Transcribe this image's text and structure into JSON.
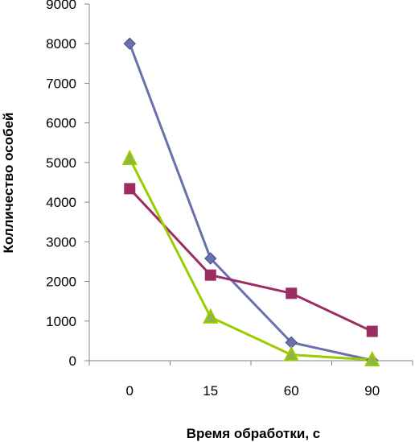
{
  "chart_data": {
    "type": "line",
    "title": "",
    "xlabel": "Время обработки, с",
    "ylabel": "Колличество особей",
    "categories": [
      "0",
      "15",
      "60",
      "90"
    ],
    "ylim": [
      0,
      9000
    ],
    "yticks": [
      0,
      1000,
      2000,
      3000,
      4000,
      5000,
      6000,
      7000,
      8000,
      9000
    ],
    "grid": false,
    "legend": "none",
    "series": [
      {
        "values": [
          8000,
          2580,
          460,
          10
        ],
        "color": "#6a6fae",
        "marker": "diamond"
      },
      {
        "values": [
          4340,
          2160,
          1700,
          740
        ],
        "color": "#9b2d63",
        "marker": "square"
      },
      {
        "values": [
          5100,
          1100,
          150,
          20
        ],
        "color": "#9acd00",
        "marker": "triangle",
        "marker_fill": "#8fb548"
      }
    ]
  }
}
